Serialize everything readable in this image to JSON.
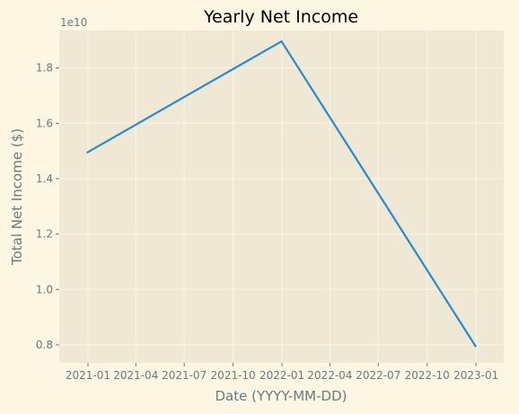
{
  "chart_data": {
    "type": "line",
    "title": "Yearly Net Income",
    "xlabel": "Date (YYYY-MM-DD)",
    "ylabel": "Total Net Income ($)",
    "y_offset_label": "1e10",
    "x_tick_labels": [
      "2021-01",
      "2021-04",
      "2021-07",
      "2021-10",
      "2022-01",
      "2022-04",
      "2022-07",
      "2022-10",
      "2023-01"
    ],
    "y_tick_labels": [
      "0.8",
      "1.0",
      "1.2",
      "1.4",
      "1.6",
      "1.8"
    ],
    "y_tick_values": [
      0.8,
      1.0,
      1.2,
      1.4,
      1.6,
      1.8
    ],
    "ylim": [
      0.735,
      1.935
    ],
    "xlim": [
      "2020-11-08",
      "2023-02-22"
    ],
    "grid": true,
    "series": [
      {
        "x": [
          "2020-12-31",
          "2021-12-31",
          "2022-12-31"
        ],
        "values": [
          1.495,
          1.896,
          0.795
        ]
      }
    ],
    "colors": {
      "figure_bg": "#fdf6e3",
      "plot_bg": "#eee8d5",
      "grid": "#fdf6e3",
      "line": "#268bd2",
      "text": "#657b83"
    }
  }
}
